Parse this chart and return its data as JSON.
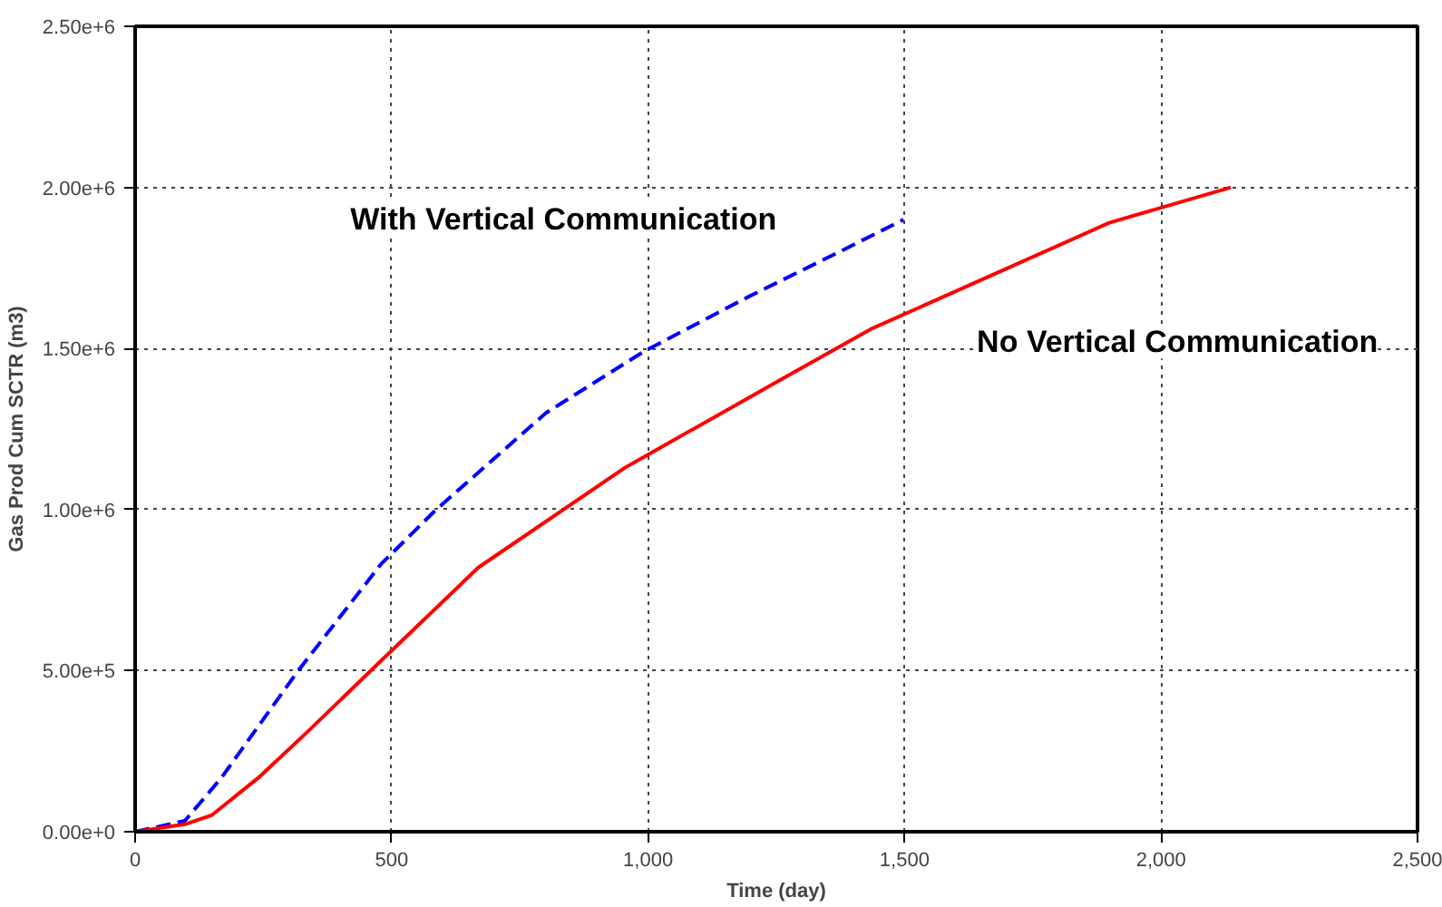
{
  "chart_data": {
    "type": "line",
    "xlabel": "Time (day)",
    "ylabel": "Gas Prod Cum SCTR (m3)",
    "xlim": [
      0,
      2500
    ],
    "ylim": [
      0,
      2500000
    ],
    "xticks": [
      0,
      500,
      {
        "value": 1000,
        "label": "1,000"
      },
      {
        "value": 1500,
        "label": "1,500"
      },
      {
        "value": 2000,
        "label": "2,000"
      },
      {
        "value": 2500,
        "label": "2,500"
      }
    ],
    "yticks": [
      {
        "value": 0,
        "label": "0.00e+0"
      },
      {
        "value": 500000,
        "label": "5.00e+5"
      },
      {
        "value": 1000000,
        "label": "1.00e+6"
      },
      {
        "value": 1500000,
        "label": "1.50e+6"
      },
      {
        "value": 2000000,
        "label": "2.00e+6"
      },
      {
        "value": 2500000,
        "label": "2.50e+6"
      }
    ],
    "grid": true,
    "series": [
      {
        "name": "With Vertical Communication",
        "color": "#0000ff",
        "line_style": "dashed",
        "x": [
          0,
          97,
          168,
          318,
          479,
          587,
          801,
          991,
          1195,
          1373,
          1498
        ],
        "values": [
          0,
          34000,
          167000,
          500000,
          830000,
          1000000,
          1300000,
          1490000,
          1660000,
          1800000,
          1900000
        ]
      },
      {
        "name": "No Vertical Communication",
        "color": "#ff0000",
        "line_style": "solid",
        "x": [
          0,
          97,
          150,
          240,
          336,
          479,
          669,
          955,
          1266,
          1434,
          1899,
          2136
        ],
        "values": [
          0,
          23000,
          52000,
          167000,
          310000,
          530000,
          820000,
          1130000,
          1410000,
          1560000,
          1890000,
          2000000
        ]
      }
    ]
  }
}
